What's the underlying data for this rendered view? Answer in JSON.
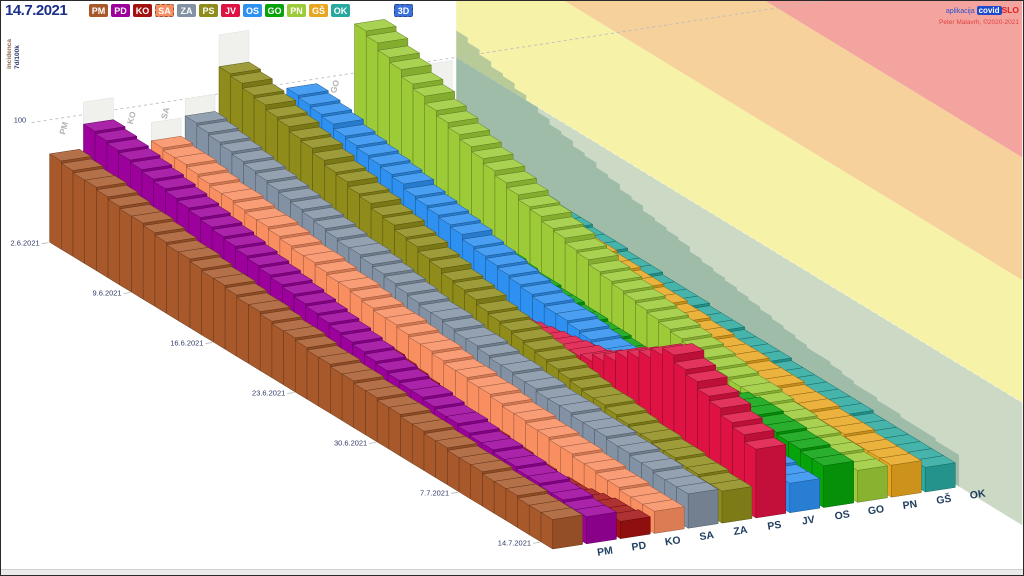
{
  "header": {
    "date_label": "14.7.2021",
    "mode_label": "3D"
  },
  "branding": {
    "app_prefix": "aplikacija",
    "brand_covid": "covid",
    "brand_slo": "SLO",
    "credit": "Peter Malavrh, ©2020-2021"
  },
  "axis": {
    "y_title_top": "7d/100k",
    "y_title_bottom": "incidenca",
    "y_gridline_label": "100"
  },
  "chart_data": {
    "type": "3d-ribbon-step",
    "value_unit": "7d/100k incidenca",
    "selected_date": "14.7.2021",
    "weekly_dates": [
      "2.6.2021",
      "9.6.2021",
      "16.6.2021",
      "23.6.2021",
      "30.6.2021",
      "7.7.2021",
      "14.7.2021"
    ],
    "y_gridline": 100,
    "legend_position": "top",
    "grid": false,
    "zones": {
      "thresholds": [
        0,
        100,
        200,
        300
      ],
      "colors": [
        "#ccd9c5",
        "#f6f2a8",
        "#f6d19c",
        "#f4a49e"
      ]
    },
    "series": [
      {
        "name": "PM",
        "color": "#A8592B",
        "weekly": [
          72,
          61,
          51,
          42,
          34,
          28,
          23
        ],
        "ghost": null,
        "dashed": false
      },
      {
        "name": "PD",
        "color": "#9C019C",
        "weekly": [
          92,
          78,
          63,
          49,
          37,
          28,
          21
        ],
        "ghost": 110,
        "dashed": false
      },
      {
        "name": "KO",
        "color": "#A31111",
        "weekly": [
          56,
          46,
          35,
          23,
          11,
          4,
          14
        ],
        "ghost": null,
        "dashed": false
      },
      {
        "name": "SA",
        "color": "#F98E61",
        "weekly": [
          70,
          60,
          50,
          40,
          31,
          23,
          17
        ],
        "ghost": 85,
        "dashed": true
      },
      {
        "name": "ZA",
        "color": "#8292A4",
        "weekly": [
          86,
          72,
          59,
          47,
          38,
          33,
          27
        ],
        "ghost": 100,
        "dashed": false
      },
      {
        "name": "PS",
        "color": "#8F8C1B",
        "weekly": [
          122,
          101,
          79,
          59,
          44,
          32,
          25
        ],
        "ghost": 148,
        "dashed": false
      },
      {
        "name": "JV",
        "color": "#DE1343",
        "weekly": [
          60,
          47,
          37,
          32,
          45,
          92,
          56
        ],
        "ghost": null,
        "dashed": false
      },
      {
        "name": "OS",
        "color": "#2E90F0",
        "weekly": [
          96,
          80,
          63,
          48,
          38,
          30,
          24
        ],
        "ghost": null,
        "dashed": false
      },
      {
        "name": "GO",
        "color": "#07A30B",
        "weekly": [
          54,
          44,
          35,
          27,
          22,
          40,
          33
        ],
        "ghost": null,
        "dashed": false
      },
      {
        "name": "PN",
        "color": "#9CCB37",
        "weekly": [
          140,
          105,
          78,
          58,
          43,
          32,
          25
        ],
        "ghost": null,
        "dashed": false
      },
      {
        "name": "GŠ",
        "color": "#E8A61F",
        "weekly": [
          70,
          58,
          48,
          40,
          34,
          29,
          25
        ],
        "ghost": null,
        "dashed": false
      },
      {
        "name": "OK",
        "color": "#28A89E",
        "weekly": [
          41,
          36,
          31,
          27,
          23,
          21,
          19
        ],
        "ghost": 98,
        "dashed": false
      }
    ],
    "wall_profile": {
      "color": "rgba(98,148,128,0.42)",
      "weekly": [
        122,
        96,
        74,
        56,
        42,
        31,
        26
      ]
    }
  }
}
